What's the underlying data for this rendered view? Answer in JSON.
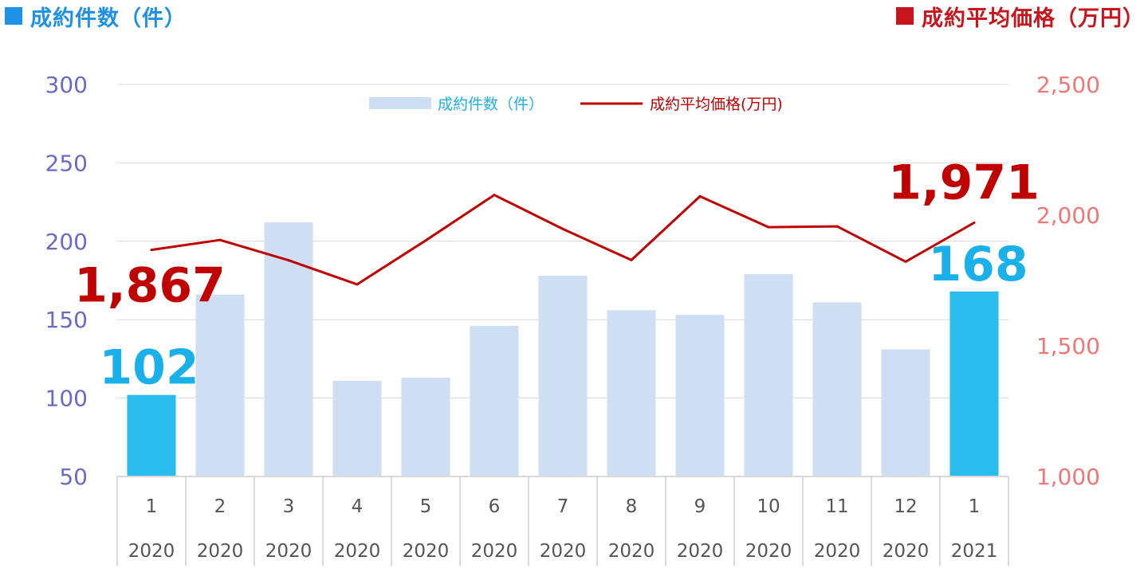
{
  "header": {
    "left_label": "成約件数（件）",
    "right_label": "成約平均価格（万円）",
    "left_color": "#1e90e6",
    "right_color": "#c8141c"
  },
  "legend": {
    "bar_label": "成約件数（件）",
    "line_label": "成約平均価格(万円)"
  },
  "chart_data": {
    "type": "bar",
    "categories": [
      "1",
      "2",
      "3",
      "4",
      "5",
      "6",
      "7",
      "8",
      "9",
      "10",
      "11",
      "12",
      "1"
    ],
    "years": [
      "2020",
      "2020",
      "2020",
      "2020",
      "2020",
      "2020",
      "2020",
      "2020",
      "2020",
      "2020",
      "2020",
      "2020",
      "2021"
    ],
    "series": [
      {
        "name": "成約件数（件）",
        "type": "bar",
        "axis": "left",
        "values": [
          102,
          166,
          212,
          111,
          113,
          146,
          178,
          156,
          153,
          179,
          161,
          131,
          168
        ],
        "highlight_indices": [
          0,
          12
        ]
      },
      {
        "name": "成約平均価格(万円)",
        "type": "line",
        "axis": "right",
        "values": [
          1867,
          1905,
          1827,
          1735,
          1903,
          2077,
          1947,
          1828,
          2072,
          1954,
          1957,
          1822,
          1971
        ]
      }
    ],
    "ylim_left": [
      50,
      300
    ],
    "yticks_left": [
      "50",
      "100",
      "150",
      "200",
      "250",
      "300"
    ],
    "ylim_right": [
      1000,
      2500
    ],
    "yticks_right": [
      "1,000",
      "1,500",
      "2,000",
      "2,500"
    ],
    "annotations": {
      "bar_first": "102",
      "bar_last": "168",
      "line_first": "1,867",
      "line_last": "1,971"
    },
    "grid": true,
    "legend_position": "top-center",
    "colors": {
      "bar": "#cfdff3",
      "bar_highlight": "#2bbcee",
      "line": "#c00000",
      "left_axis_text": "#6a6ac8",
      "right_axis_text": "#f27676",
      "annotation_bar": "#1ab0ea",
      "annotation_line": "#c00000",
      "grid": "#d9d9d9",
      "category_text": "#555555"
    }
  }
}
